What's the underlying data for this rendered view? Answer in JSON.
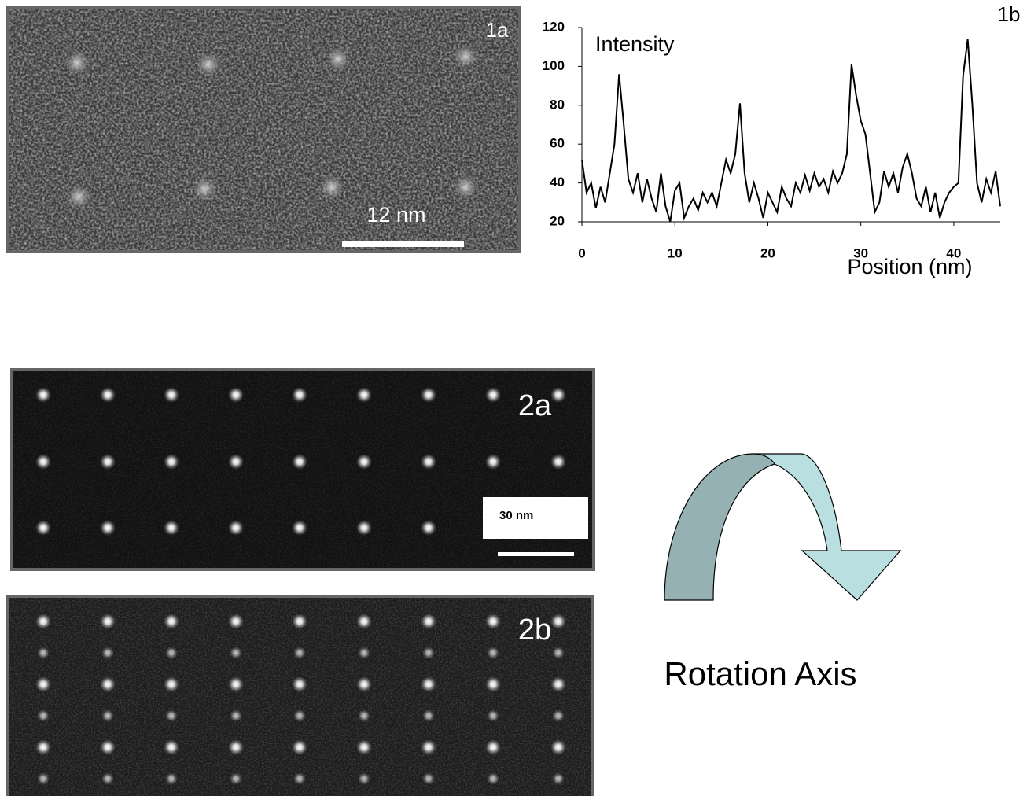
{
  "chart_data": {
    "type": "line",
    "annotation": "Intensity",
    "panel_label": "1b",
    "x_label": "Position (nm)",
    "x": [
      0,
      0.5,
      1,
      1.5,
      2,
      2.5,
      3,
      3.5,
      4,
      4.5,
      5,
      5.5,
      6,
      6.5,
      7,
      7.5,
      8,
      8.5,
      9,
      9.5,
      10,
      10.5,
      11,
      11.5,
      12,
      12.5,
      13,
      13.5,
      14,
      14.5,
      15,
      15.5,
      16,
      16.5,
      17,
      17.5,
      18,
      18.5,
      19,
      19.5,
      20,
      20.5,
      21,
      21.5,
      22,
      22.5,
      23,
      23.5,
      24,
      24.5,
      25,
      25.5,
      26,
      26.5,
      27,
      27.5,
      28,
      28.5,
      29,
      29.5,
      30,
      30.5,
      31,
      31.5,
      32,
      32.5,
      33,
      33.5,
      34,
      34.5,
      35,
      35.5,
      36,
      36.5,
      37,
      37.5,
      38,
      38.5,
      39,
      39.5,
      40,
      40.5,
      41,
      41.5,
      42,
      42.5,
      43,
      43.5,
      44,
      44.5,
      45
    ],
    "values": [
      52,
      35,
      40,
      27,
      38,
      30,
      45,
      60,
      96,
      70,
      42,
      35,
      45,
      30,
      42,
      32,
      25,
      45,
      28,
      20,
      36,
      40,
      22,
      28,
      32,
      26,
      35,
      30,
      35,
      28,
      40,
      52,
      45,
      55,
      81,
      45,
      30,
      40,
      32,
      22,
      35,
      30,
      25,
      38,
      32,
      28,
      40,
      35,
      44,
      36,
      45,
      38,
      42,
      35,
      46,
      40,
      45,
      55,
      101,
      85,
      72,
      65,
      45,
      25,
      30,
      46,
      38,
      45,
      35,
      48,
      55,
      45,
      32,
      28,
      38,
      25,
      35,
      22,
      30,
      35,
      38,
      40,
      95,
      114,
      80,
      40,
      30,
      42,
      35,
      46,
      28
    ],
    "color": "#000000",
    "xlim": [
      0,
      45
    ],
    "xticks": [
      0,
      10,
      20,
      30,
      40
    ],
    "ylim": [
      20,
      120
    ],
    "yticks": [
      20,
      40,
      60,
      80,
      100,
      120
    ]
  },
  "images": {
    "1a": {
      "label": "1a",
      "scale_bar": "12 nm"
    },
    "2a": {
      "label": "2a",
      "scale_bar": "30 nm"
    },
    "2b": {
      "label": "2b"
    }
  },
  "arrow_label": "Rotation Axis"
}
